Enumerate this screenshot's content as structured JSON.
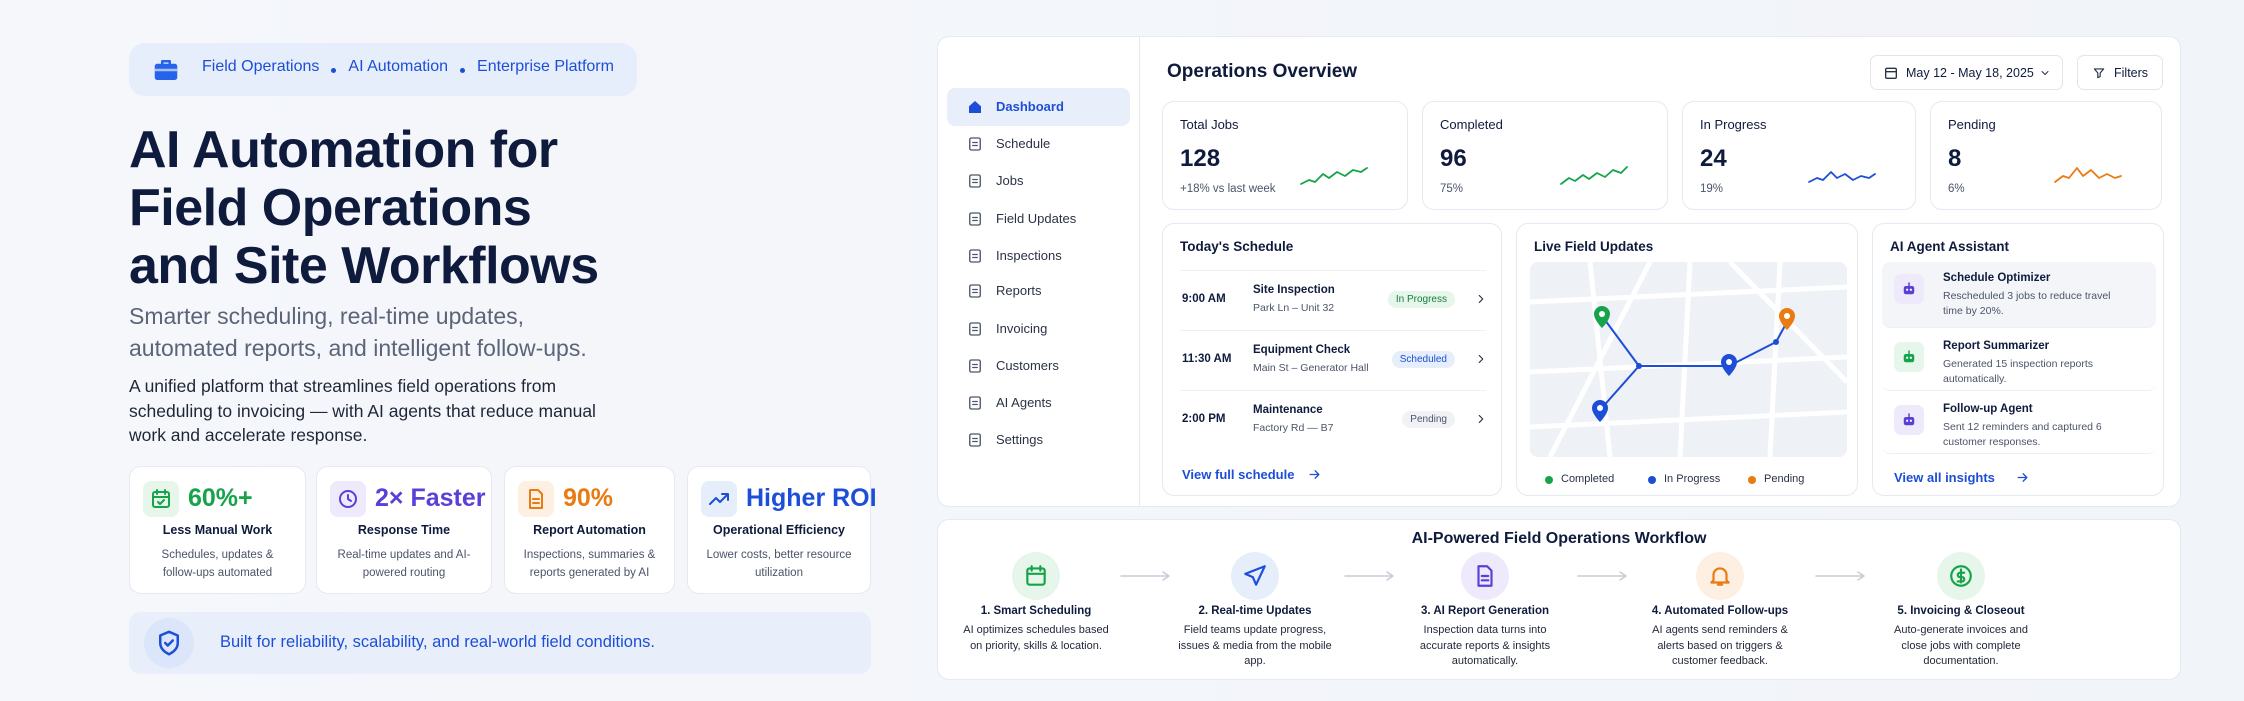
{
  "badge": {
    "items": [
      "Field Operations",
      "AI Automation",
      "Enterprise Platform"
    ]
  },
  "hero": {
    "title_lines": [
      "AI Automation for",
      "Field Operations",
      "and Site Workflows"
    ],
    "subtitle": "Smarter scheduling, real-time updates, automated reports, and intelligent follow-ups.",
    "description": "A unified platform that streamlines field operations from scheduling to invoicing — with AI agents that reduce manual work and accelerate response."
  },
  "stats": [
    {
      "value": "60%+",
      "label": "Less Manual Work",
      "desc": "Schedules, updates & follow-ups automated"
    },
    {
      "value": "2× Faster",
      "label": "Response Time",
      "desc": "Real-time updates and AI-powered routing"
    },
    {
      "value": "90%",
      "label": "Report Automation",
      "desc": "Inspections, summaries & reports generated by AI"
    },
    {
      "value": "Higher ROI",
      "label": "Operational Efficiency",
      "desc": "Lower costs, better resource utilization"
    }
  ],
  "banner": "Built for reliability, scalability, and real-world field conditions.",
  "dashboard": {
    "sidebar": [
      "Dashboard",
      "Schedule",
      "Jobs",
      "Field Updates",
      "Inspections",
      "Reports",
      "Invoicing",
      "Customers",
      "AI Agents",
      "Settings"
    ],
    "title": "Operations Overview",
    "date_range": "May 12 - May 18, 2025",
    "filters": "Filters",
    "kpis": [
      {
        "label": "Total Jobs",
        "value": "128",
        "note": "+18% vs last week"
      },
      {
        "label": "Completed",
        "value": "96",
        "note": "75%"
      },
      {
        "label": "In Progress",
        "value": "24",
        "note": "19%"
      },
      {
        "label": "Pending",
        "value": "8",
        "note": "6%"
      }
    ],
    "schedule": {
      "title": "Today's Schedule",
      "items": [
        {
          "time": "9:00 AM",
          "title": "Site Inspection",
          "location": "Park Ln – Unit 32",
          "status": "In Progress"
        },
        {
          "time": "11:30 AM",
          "title": "Equipment Check",
          "location": "Main St – Generator Hall",
          "status": "Scheduled"
        },
        {
          "time": "2:00 PM",
          "title": "Maintenance",
          "location": "Factory Rd — B7",
          "status": "Pending"
        }
      ],
      "link": "View full schedule"
    },
    "live": {
      "title": "Live Field Updates",
      "legend": [
        "Completed",
        "In Progress",
        "Pending"
      ]
    },
    "assistant": {
      "title": "AI Agent Assistant",
      "items": [
        {
          "title": "Schedule Optimizer",
          "desc": "Rescheduled 3 jobs to reduce travel time by 20%."
        },
        {
          "title": "Report Summarizer",
          "desc": "Generated 15 inspection reports automatically."
        },
        {
          "title": "Follow-up Agent",
          "desc": "Sent 12 reminders and captured 6 customer responses."
        }
      ],
      "link": "View all insights"
    }
  },
  "workflow": {
    "title": "AI-Powered Field Operations Workflow",
    "steps": [
      {
        "title": "1. Smart Scheduling",
        "desc": "AI optimizes schedules based on priority, skills & location."
      },
      {
        "title": "2. Real-time Updates",
        "desc": "Field teams update progress, issues & media from the mobile app."
      },
      {
        "title": "3. AI Report Generation",
        "desc": "Inspection data turns into accurate reports & insights automatically."
      },
      {
        "title": "4. Automated Follow-ups",
        "desc": "AI agents send reminders & alerts based on triggers & customer feedback."
      },
      {
        "title": "5. Invoicing & Closeout",
        "desc": "Auto-generate invoices and close jobs with complete documentation."
      }
    ]
  }
}
